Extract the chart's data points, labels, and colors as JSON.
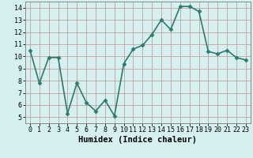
{
  "x": [
    0,
    1,
    2,
    3,
    4,
    5,
    6,
    7,
    8,
    9,
    10,
    11,
    12,
    13,
    14,
    15,
    16,
    17,
    18,
    19,
    20,
    21,
    22,
    23
  ],
  "y": [
    10.5,
    7.8,
    9.9,
    9.9,
    5.3,
    7.8,
    6.2,
    5.5,
    6.4,
    5.1,
    9.4,
    10.6,
    10.9,
    11.8,
    13.0,
    12.2,
    14.1,
    14.1,
    13.7,
    10.4,
    10.2,
    10.5,
    9.9,
    9.7
  ],
  "line_color": "#2d7a6e",
  "marker_color": "#2d7a6e",
  "bg_color": "#d6f0f0",
  "grid_color": "#c0a0a0",
  "xlabel": "Humidex (Indice chaleur)",
  "xlim": [
    -0.5,
    23.5
  ],
  "ylim": [
    4.5,
    14.5
  ],
  "yticks": [
    5,
    6,
    7,
    8,
    9,
    10,
    11,
    12,
    13,
    14
  ],
  "xticks": [
    0,
    1,
    2,
    3,
    4,
    5,
    6,
    7,
    8,
    9,
    10,
    11,
    12,
    13,
    14,
    15,
    16,
    17,
    18,
    19,
    20,
    21,
    22,
    23
  ],
  "xlabel_fontsize": 7.5,
  "tick_fontsize": 6.0,
  "line_width": 1.2,
  "marker_size": 2.5
}
